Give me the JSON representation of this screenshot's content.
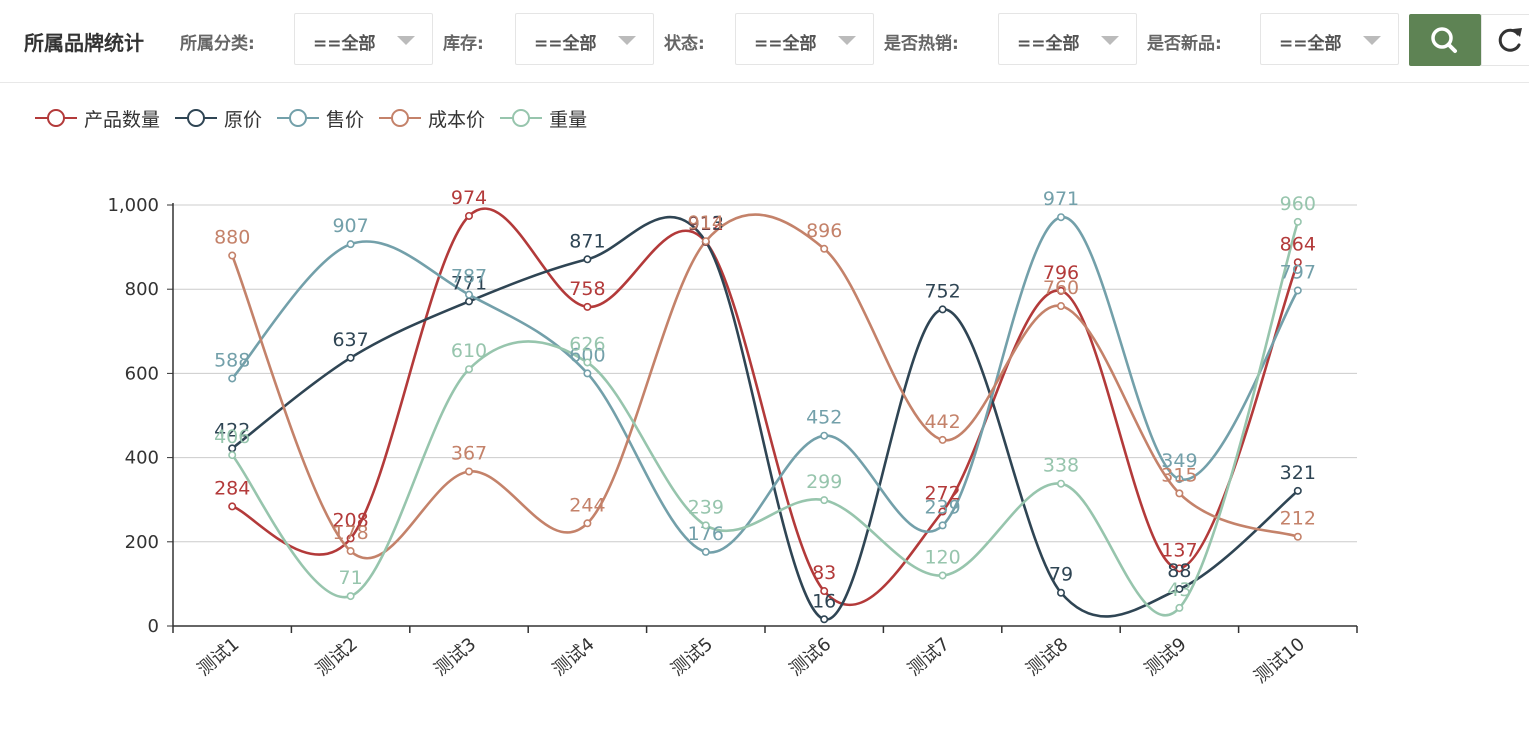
{
  "header": {
    "title": "所属品牌统计",
    "filters": [
      {
        "label": "所属分类:",
        "value": "==全部"
      },
      {
        "label": "库存:",
        "value": "==全部"
      },
      {
        "label": "状态:",
        "value": "==全部"
      },
      {
        "label": "是否热销:",
        "value": "==全部"
      },
      {
        "label": "是否新品:",
        "value": "==全部"
      }
    ],
    "search_icon": "search-icon",
    "refresh_icon": "refresh-icon",
    "accent_color": "#5e8354"
  },
  "chart_data": {
    "type": "line",
    "smooth": true,
    "categories": [
      "测试1",
      "测试2",
      "测试3",
      "测试4",
      "测试5",
      "测试6",
      "测试7",
      "测试8",
      "测试9",
      "测试10"
    ],
    "ylim": [
      0,
      1000
    ],
    "yticks": [
      0,
      200,
      400,
      600,
      800,
      1000
    ],
    "ytick_labels": [
      "0",
      "200",
      "400",
      "600",
      "800",
      "1,000"
    ],
    "grid": true,
    "legend_position": "top-left",
    "series": [
      {
        "name": "产品数量",
        "color": "#b33a3a",
        "values": [
          284,
          208,
          974,
          758,
          912,
          83,
          272,
          796,
          137,
          864
        ]
      },
      {
        "name": "原价",
        "color": "#2f4554",
        "values": [
          422,
          637,
          771,
          871,
          913,
          16,
          752,
          79,
          88,
          321
        ]
      },
      {
        "name": "售价",
        "color": "#73a0aa",
        "values": [
          588,
          907,
          787,
          600,
          176,
          452,
          239,
          971,
          349,
          797
        ]
      },
      {
        "name": "成本价",
        "color": "#c4826a",
        "values": [
          880,
          178,
          367,
          244,
          914,
          896,
          442,
          760,
          315,
          212
        ]
      },
      {
        "name": "重量",
        "color": "#97c5ad",
        "values": [
          406,
          71,
          610,
          626,
          239,
          299,
          120,
          338,
          43,
          960
        ]
      }
    ]
  }
}
